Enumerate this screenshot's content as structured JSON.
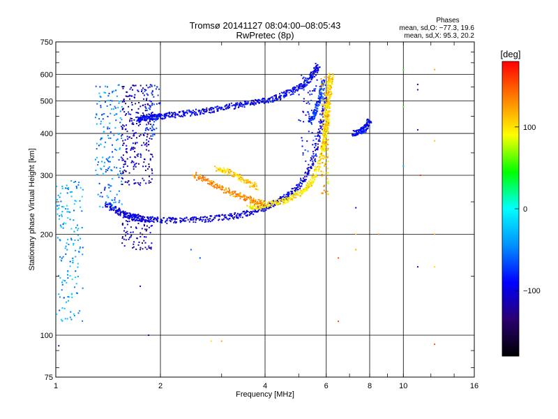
{
  "chart_data": {
    "type": "scatter",
    "title": "Tromsø 20141127 08:04:00–08:05:43",
    "subtitle": "RwPretec (8p)",
    "xlabel": "Frequency [MHz]",
    "ylabel": "Stationary phase Virtual Height [km]",
    "x_scale": "log",
    "y_scale": "log",
    "xlim": [
      1,
      16
    ],
    "ylim": [
      75,
      750
    ],
    "x_ticks": [
      1,
      2,
      4,
      6,
      8,
      10,
      16
    ],
    "y_ticks": [
      75,
      100,
      200,
      300,
      400,
      500,
      600,
      750
    ],
    "x_grid": [
      2,
      4,
      6,
      8,
      10
    ],
    "y_grid": [
      100,
      200,
      300,
      400,
      500,
      600
    ],
    "grid": true,
    "phase_stats": {
      "heading": "Phases",
      "line_o": "mean, sd,O: −77.3, 19.6",
      "line_x": "mean, sd,X:  95.3, 20.2"
    },
    "colorbar": {
      "label": "[deg]",
      "min": -180,
      "max": 180,
      "ticks": [
        100,
        0,
        -100
      ],
      "colormap": [
        "#000000",
        "#2a0070",
        "#0000ff",
        "#0090ff",
        "#00ffff",
        "#00ff00",
        "#ffff00",
        "#ff8000",
        "#ff0000"
      ]
    },
    "traces": [
      {
        "f": [
          1.72,
          1.8,
          1.9,
          2.0,
          2.2,
          2.5,
          2.8,
          3.2,
          3.6,
          4.0,
          4.4,
          4.8,
          5.2,
          5.5,
          5.7
        ],
        "h": [
          440,
          445,
          448,
          450,
          455,
          462,
          470,
          482,
          492,
          500,
          515,
          535,
          560,
          600,
          640
        ],
        "phase": -95
      },
      {
        "f": [
          1.4,
          1.5,
          1.6,
          1.7,
          1.8,
          2.0,
          2.3,
          2.7,
          3.1,
          3.5,
          3.9,
          4.3,
          4.7,
          5.1,
          5.5,
          5.8,
          6.0
        ],
        "h": [
          245,
          235,
          228,
          224,
          222,
          220,
          220,
          222,
          225,
          230,
          238,
          248,
          262,
          285,
          330,
          420,
          520
        ],
        "phase": -100
      },
      {
        "f": [
          3.6,
          4.0,
          4.4,
          4.8,
          5.2,
          5.5,
          5.8,
          6.0,
          6.05
        ],
        "h": [
          240,
          245,
          250,
          258,
          270,
          290,
          340,
          420,
          500
        ],
        "phase": 100
      },
      {
        "f": [
          2.5,
          2.8,
          3.1,
          3.4,
          3.7,
          4.0
        ],
        "h": [
          300,
          285,
          270,
          260,
          252,
          245
        ],
        "phase": 130
      },
      {
        "f": [
          5.9,
          6.0,
          6.05,
          6.1,
          6.15,
          6.2
        ],
        "h": [
          360,
          400,
          450,
          500,
          560,
          600
        ],
        "phase": 105
      },
      {
        "f": [
          2.9,
          3.2,
          3.5,
          3.8
        ],
        "h": [
          315,
          305,
          290,
          275
        ],
        "phase": 110
      },
      {
        "f": [
          5.4,
          5.6,
          5.8,
          5.9
        ],
        "h": [
          430,
          470,
          520,
          580
        ],
        "phase": -70
      },
      {
        "f": [
          7.2,
          7.5,
          7.8,
          8.0
        ],
        "h": [
          400,
          405,
          415,
          440
        ],
        "phase": -90
      }
    ],
    "clusters": [
      {
        "f": [
          1.0,
          1.2
        ],
        "h": [
          110,
          290
        ],
        "phase": -40,
        "n": 160
      },
      {
        "f": [
          1.3,
          1.55
        ],
        "h": [
          240,
          560
        ],
        "phase": -50,
        "n": 170
      },
      {
        "f": [
          1.55,
          1.9
        ],
        "h": [
          280,
          560
        ],
        "phase": -110,
        "n": 260
      },
      {
        "f": [
          1.55,
          1.9
        ],
        "h": [
          180,
          230
        ],
        "phase": -115,
        "n": 80
      },
      {
        "f": [
          1.8,
          2.0
        ],
        "h": [
          390,
          560
        ],
        "phase": -80,
        "n": 50
      },
      {
        "f": [
          5.8,
          6.1
        ],
        "h": [
          260,
          600
        ],
        "phase": 110,
        "n": 110
      },
      {
        "f": [
          5.0,
          5.8
        ],
        "h": [
          330,
          600
        ],
        "phase": -90,
        "n": 70
      }
    ],
    "points": [
      {
        "f": 1.02,
        "h": 93,
        "phase": -110
      },
      {
        "f": 1.85,
        "h": 100,
        "phase": -100
      },
      {
        "f": 1.75,
        "h": 140,
        "phase": -100
      },
      {
        "f": 2.6,
        "h": 170,
        "phase": -70
      },
      {
        "f": 2.45,
        "h": 180,
        "phase": -60
      },
      {
        "f": 6.5,
        "h": 110,
        "phase": 160
      },
      {
        "f": 6.5,
        "h": 170,
        "phase": 150
      },
      {
        "f": 7.3,
        "h": 180,
        "phase": 120
      },
      {
        "f": 7.3,
        "h": 200,
        "phase": 110
      },
      {
        "f": 7.3,
        "h": 240,
        "phase": -100
      },
      {
        "f": 8.5,
        "h": 200,
        "phase": 130
      },
      {
        "f": 10.0,
        "h": 320,
        "phase": -30
      },
      {
        "f": 10.0,
        "h": 480,
        "phase": 60
      },
      {
        "f": 10.0,
        "h": 620,
        "phase": 50
      },
      {
        "f": 11.0,
        "h": 560,
        "phase": -110
      },
      {
        "f": 11.0,
        "h": 540,
        "phase": -110
      },
      {
        "f": 11.0,
        "h": 410,
        "phase": -100
      },
      {
        "f": 11.2,
        "h": 300,
        "phase": 160
      },
      {
        "f": 11.0,
        "h": 160,
        "phase": -100
      },
      {
        "f": 12.3,
        "h": 620,
        "phase": 120
      },
      {
        "f": 12.3,
        "h": 380,
        "phase": 110
      },
      {
        "f": 12.3,
        "h": 200,
        "phase": 120
      },
      {
        "f": 12.3,
        "h": 160,
        "phase": 100
      },
      {
        "f": 12.3,
        "h": 94,
        "phase": 150
      },
      {
        "f": 2.8,
        "h": 96,
        "phase": 100
      },
      {
        "f": 3.0,
        "h": 96,
        "phase": 120
      }
    ]
  }
}
